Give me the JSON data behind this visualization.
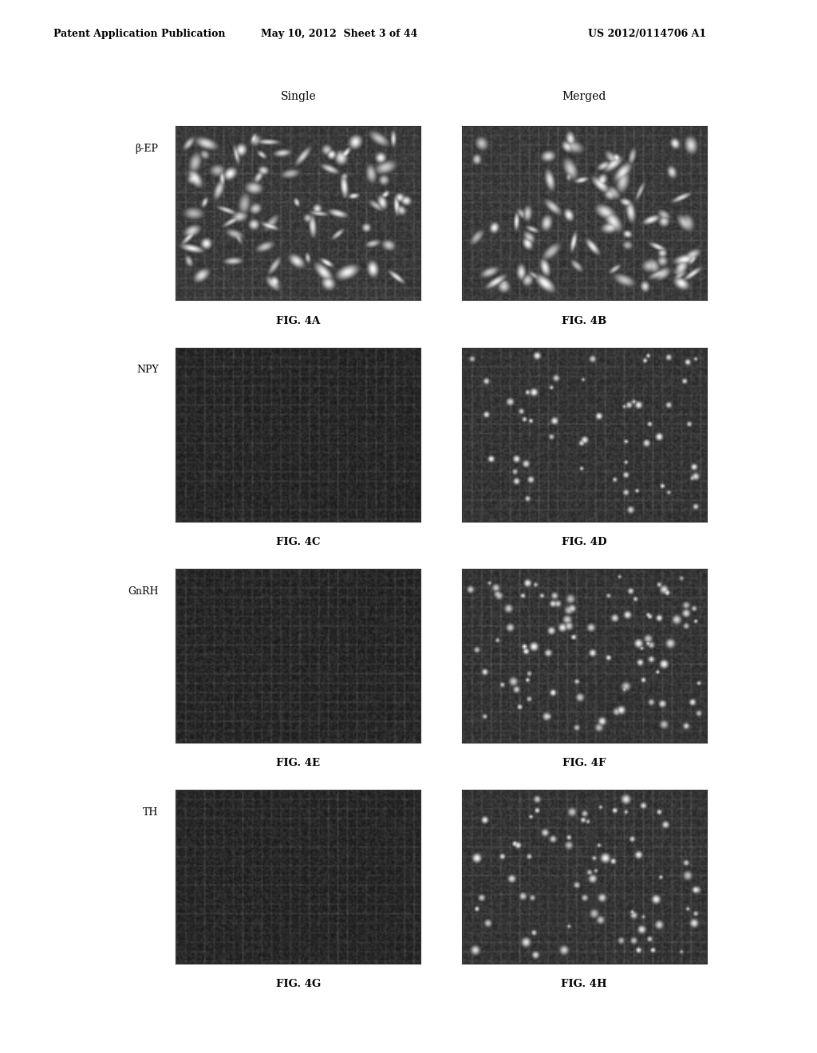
{
  "header_left": "Patent Application Publication",
  "header_mid": "May 10, 2012  Sheet 3 of 44",
  "header_right": "US 2012/0114706 A1",
  "col_labels": [
    "Single",
    "Merged"
  ],
  "row_labels": [
    "β-EP",
    "NPY",
    "GnRH",
    "TH"
  ],
  "fig_labels": [
    [
      "FIG. 4A",
      "FIG. 4B"
    ],
    [
      "FIG. 4C",
      "FIG. 4D"
    ],
    [
      "FIG. 4E",
      "FIG. 4F"
    ],
    [
      "FIG. 4G",
      "FIG. 4H"
    ]
  ],
  "background_color": "#ffffff"
}
